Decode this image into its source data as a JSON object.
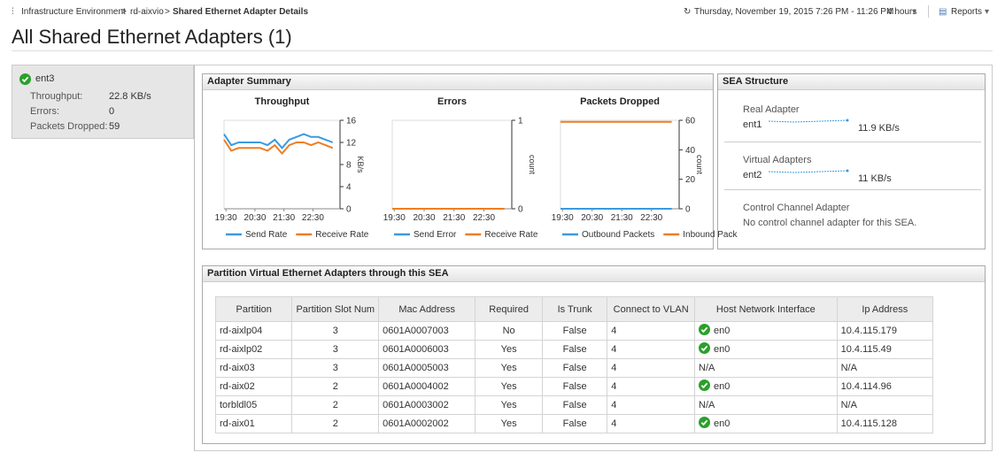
{
  "breadcrumb": [
    "Infrastructure Environment",
    "rd-aixvio",
    "Shared Ethernet Adapter Details"
  ],
  "time_range": "Thursday, November 19, 2015 7:26 PM - 11:26 PM",
  "duration": "4 hours",
  "reports": "Reports",
  "title": "All Shared Ethernet Adapters (1)",
  "sidebar": {
    "name": "ent3",
    "status": "ok",
    "stats": [
      {
        "label": "Throughput:",
        "value": "22.8 KB/s"
      },
      {
        "label": "Errors:",
        "value": "0"
      },
      {
        "label": "Packets Dropped:",
        "value": "59"
      }
    ]
  },
  "adapter_summary": {
    "title": "Adapter Summary",
    "charts": [
      {
        "type": "line",
        "title": "Throughput",
        "y_label": "KB/s",
        "x": [
          "19:26",
          "19:41",
          "19:56",
          "20:11",
          "20:26",
          "20:41",
          "20:56",
          "21:11",
          "21:26",
          "21:41",
          "21:56",
          "22:11",
          "22:26",
          "22:41",
          "22:56",
          "23:11"
        ],
        "xlim": [
          "19:26",
          "23:26"
        ],
        "xticks": [
          "19:30",
          "20:30",
          "21:30",
          "22:30"
        ],
        "ylim": [
          0,
          16
        ],
        "yticks": [
          0,
          4,
          8,
          12,
          16
        ],
        "series": [
          {
            "name": "Send Rate",
            "color": "#3a9be0",
            "values": [
              13.5,
              11.5,
              12,
              12,
              12,
              12,
              11.5,
              12.5,
              11,
              12.5,
              13,
              13.5,
              13,
              13,
              12.5,
              12
            ]
          },
          {
            "name": "Receive Rate",
            "color": "#ef7d22",
            "values": [
              12.5,
              10.5,
              11,
              11,
              11,
              11,
              10.5,
              11.5,
              10,
              11.5,
              12,
              12,
              11.5,
              12,
              11.5,
              11
            ]
          }
        ]
      },
      {
        "type": "line",
        "title": "Errors",
        "y_label": "count",
        "x": [
          "19:26",
          "19:41",
          "19:56",
          "20:11",
          "20:26",
          "20:41",
          "20:56",
          "21:11",
          "21:26",
          "21:41",
          "21:56",
          "22:11",
          "22:26",
          "22:41",
          "22:56",
          "23:11"
        ],
        "xlim": [
          "19:26",
          "23:26"
        ],
        "xticks": [
          "19:30",
          "20:30",
          "21:30",
          "22:30"
        ],
        "ylim": [
          0,
          1
        ],
        "yticks": [
          0,
          1
        ],
        "series": [
          {
            "name": "Send Error",
            "color": "#3a9be0",
            "values": [
              0,
              0,
              0,
              0,
              0,
              0,
              0,
              0,
              0,
              0,
              0,
              0,
              0,
              0,
              0,
              0
            ]
          },
          {
            "name": "Receive Rate",
            "color": "#ef7d22",
            "values": [
              0,
              0,
              0,
              0,
              0,
              0,
              0,
              0,
              0,
              0,
              0,
              0,
              0,
              0,
              0,
              0
            ]
          }
        ]
      },
      {
        "type": "line",
        "title": "Packets Dropped",
        "y_label": "count",
        "x": [
          "19:26",
          "19:41",
          "19:56",
          "20:11",
          "20:26",
          "20:41",
          "20:56",
          "21:11",
          "21:26",
          "21:41",
          "21:56",
          "22:11",
          "22:26",
          "22:41",
          "22:56",
          "23:11"
        ],
        "xlim": [
          "19:26",
          "23:26"
        ],
        "xticks": [
          "19:30",
          "20:30",
          "21:30",
          "22:30"
        ],
        "ylim": [
          0,
          60
        ],
        "yticks": [
          0,
          20,
          40,
          60
        ],
        "series": [
          {
            "name": "Outbound Packets",
            "color": "#3a9be0",
            "values": [
              0,
              0,
              0,
              0,
              0,
              0,
              0,
              0,
              0,
              0,
              0,
              0,
              0,
              0,
              0,
              0
            ]
          },
          {
            "name": "Inbound Pack",
            "color": "#ef7d22",
            "values": [
              59,
              59,
              59,
              59,
              59,
              59,
              59,
              59,
              59,
              59,
              59,
              59,
              59,
              59,
              59,
              59
            ]
          }
        ]
      }
    ]
  },
  "sea_structure": {
    "title": "SEA Structure",
    "sections": [
      {
        "label": "Real Adapter",
        "name": "ent1",
        "value": "11.9 KB/s"
      },
      {
        "label": "Virtual Adapters",
        "name": "ent2",
        "value": "11 KB/s"
      },
      {
        "label": "Control Channel Adapter",
        "text": "No control channel adapter for this SEA."
      }
    ]
  },
  "partition_table": {
    "title": "Partition Virtual Ethernet Adapters through this SEA",
    "columns": [
      "Partition",
      "Partition Slot Num",
      "Mac Address",
      "Required",
      "Is Trunk",
      "Connect to VLAN",
      "Host Network Interface",
      "Ip Address"
    ],
    "rows": [
      [
        "rd-aixlp04",
        "3",
        "0601A0007003",
        "No",
        "False",
        "4",
        {
          "status": "ok",
          "text": "en0"
        },
        "10.4.115.179"
      ],
      [
        "rd-aixlp02",
        "3",
        "0601A0006003",
        "Yes",
        "False",
        "4",
        {
          "status": "ok",
          "text": "en0"
        },
        "10.4.115.49"
      ],
      [
        "rd-aix03",
        "3",
        "0601A0005003",
        "Yes",
        "False",
        "4",
        "N/A",
        "N/A"
      ],
      [
        "rd-aix02",
        "2",
        "0601A0004002",
        "Yes",
        "False",
        "4",
        {
          "status": "ok",
          "text": "en0"
        },
        "10.4.114.96"
      ],
      [
        "torbldl05",
        "2",
        "0601A0003002",
        "Yes",
        "False",
        "4",
        "N/A",
        "N/A"
      ],
      [
        "rd-aix01",
        "2",
        "0601A0002002",
        "Yes",
        "False",
        "4",
        {
          "status": "ok",
          "text": "en0"
        },
        "10.4.115.128"
      ]
    ]
  }
}
